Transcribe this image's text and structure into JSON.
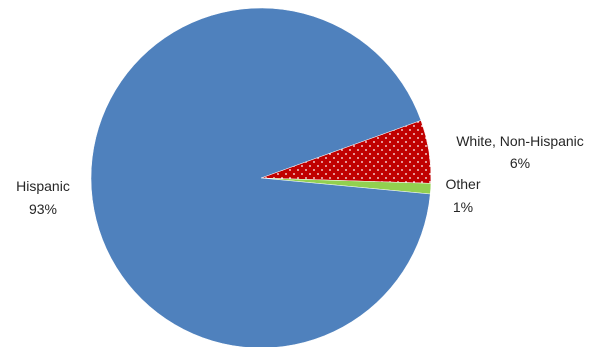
{
  "chart_data": {
    "type": "pie",
    "title": "",
    "slices": [
      {
        "label": "White, Non-Hispanic",
        "value": 6,
        "value_label": "6%",
        "color": "#C00000",
        "pattern": "white-dots"
      },
      {
        "label": "Other",
        "value": 1,
        "value_label": "1%",
        "color": "#92D050"
      },
      {
        "label": "Hispanic",
        "value": 93,
        "value_label": "93%",
        "color": "#4F81BD"
      }
    ],
    "legend": "none",
    "labels_position": "outside"
  }
}
